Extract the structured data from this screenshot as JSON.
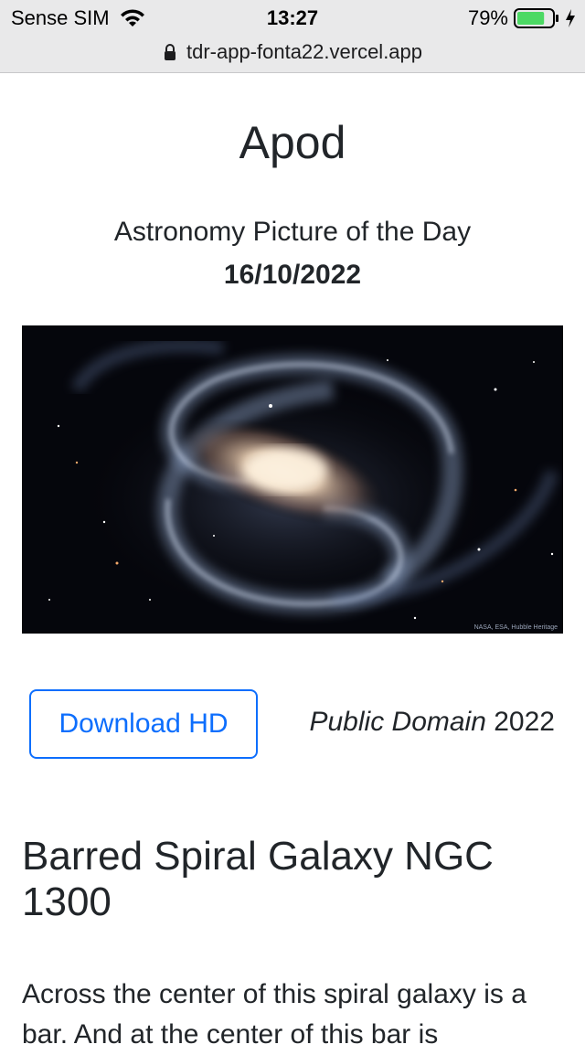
{
  "status_bar": {
    "carrier": "Sense SIM",
    "time": "13:27",
    "battery_percent": "79%",
    "battery_level": 0.79,
    "battery_color": "#4cd964"
  },
  "browser": {
    "url": "tdr-app-fonta22.vercel.app"
  },
  "page": {
    "title": "Apod",
    "subtitle": "Astronomy Picture of the Day",
    "date": "16/10/2022",
    "image_credit": "NASA, ESA, Hubble Heritage",
    "download_label": "Download HD",
    "copyright_label": "Public Domain",
    "copyright_year": "2022",
    "article_title": "Barred Spiral Galaxy NGC 1300",
    "explanation": "Across the center of this spiral galaxy is a bar. And at the center of this bar is"
  },
  "colors": {
    "accent": "#0d6efd",
    "text": "#212529"
  }
}
